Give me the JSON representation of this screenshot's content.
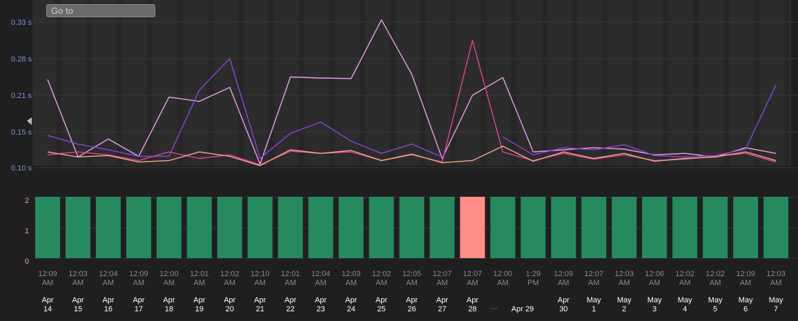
{
  "goto": {
    "placeholder": "Go to"
  },
  "colors": {
    "background": "#1f1f1f",
    "column_light": "#2c2c2c",
    "column_dark": "#262626",
    "pass_bar": "#268a5e",
    "fail_bar": "#ff8e86",
    "latency_tick": "#7f90dc",
    "count_tick": "#ff9a84",
    "time_label": "#8a8a8a",
    "date_label": "#ffffff"
  },
  "chart_data": [
    {
      "type": "line",
      "y_ticks": [
        "0.33 s",
        "0.28 s",
        "0.21 s",
        "0.15 s",
        "0.10 s"
      ],
      "y_tick_values": [
        0.33,
        0.28,
        0.21,
        0.15,
        0.1
      ],
      "grid": true,
      "series": [
        {
          "color": "#f0a0ee",
          "values": [
            0.24,
            0.115,
            0.14,
            0.116,
            0.207,
            0.2,
            0.225,
            0.105,
            0.245,
            0.243,
            0.242,
            0.333,
            0.25,
            0.113,
            0.21,
            0.244,
            0.122,
            0.125,
            0.128,
            0.126,
            0.118,
            0.12,
            0.115,
            0.128,
            0.12
          ]
        },
        {
          "color": "#8a44d8",
          "values": [
            0.145,
            0.133,
            0.125,
            0.116,
            0.116,
            0.22,
            0.28,
            0.113,
            0.148,
            0.166,
            0.137,
            0.12,
            0.133,
            0.115,
            null,
            0.143,
            0.118,
            0.128,
            0.125,
            0.132,
            0.117,
            0.115,
            0.117,
            0.126,
            0.23
          ]
        },
        {
          "color": "#e0459a",
          "values": [
            0.118,
            0.122,
            0.118,
            0.11,
            0.122,
            0.113,
            0.118,
            0.104,
            0.123,
            0.12,
            0.122,
            0.11,
            0.118,
            0.108,
            0.305,
            0.122,
            0.11,
            0.12,
            0.112,
            0.118,
            0.11,
            0.112,
            0.116,
            0.12,
            0.108
          ]
        },
        {
          "color": "#f6a88e",
          "values": [
            0.122,
            0.115,
            0.117,
            0.108,
            0.11,
            0.122,
            0.116,
            0.103,
            0.125,
            0.12,
            0.124,
            0.11,
            0.119,
            0.107,
            0.11,
            0.13,
            0.109,
            0.122,
            0.113,
            0.12,
            0.109,
            0.113,
            0.115,
            0.122,
            0.11
          ]
        }
      ]
    },
    {
      "type": "bar",
      "y_ticks": [
        "2",
        "1",
        "0"
      ],
      "y_tick_values": [
        2,
        1,
        0
      ],
      "ylim": [
        0,
        2
      ],
      "values": [
        2,
        2,
        2,
        2,
        2,
        2,
        2,
        2,
        2,
        2,
        2,
        2,
        2,
        2,
        2,
        2,
        2,
        2,
        2,
        2,
        2,
        2,
        2,
        2,
        2
      ],
      "status": [
        "pass",
        "pass",
        "pass",
        "pass",
        "pass",
        "pass",
        "pass",
        "pass",
        "pass",
        "pass",
        "pass",
        "pass",
        "pass",
        "pass",
        "fail",
        "pass",
        "pass",
        "pass",
        "pass",
        "pass",
        "pass",
        "pass",
        "pass",
        "pass",
        "pass"
      ]
    }
  ],
  "x_labels": {
    "times": [
      [
        "12:09",
        "AM"
      ],
      [
        "12:03",
        "AM"
      ],
      [
        "12:04",
        "AM"
      ],
      [
        "12:09",
        "AM"
      ],
      [
        "12:00",
        "AM"
      ],
      [
        "12:01",
        "AM"
      ],
      [
        "12:02",
        "AM"
      ],
      [
        "12:10",
        "AM"
      ],
      [
        "12:01",
        "AM"
      ],
      [
        "12:04",
        "AM"
      ],
      [
        "12:03",
        "AM"
      ],
      [
        "12:02",
        "AM"
      ],
      [
        "12:05",
        "AM"
      ],
      [
        "12:07",
        "AM"
      ],
      [
        "12:07",
        "AM"
      ],
      [
        "12:00",
        "AM"
      ],
      [
        "1:29",
        "PM"
      ],
      [
        "12:09",
        "AM"
      ],
      [
        "12:07",
        "AM"
      ],
      [
        "12:03",
        "AM"
      ],
      [
        "12:06",
        "AM"
      ],
      [
        "12:02",
        "AM"
      ],
      [
        "12:02",
        "AM"
      ],
      [
        "12:09",
        "AM"
      ],
      [
        "12:03",
        "AM"
      ]
    ],
    "dates": [
      [
        "Apr",
        "14"
      ],
      [
        "Apr",
        "15"
      ],
      [
        "Apr",
        "16"
      ],
      [
        "Apr",
        "17"
      ],
      [
        "Apr",
        "18"
      ],
      [
        "Apr",
        "19"
      ],
      [
        "Apr",
        "20"
      ],
      [
        "Apr",
        "21"
      ],
      [
        "Apr",
        "22"
      ],
      [
        "Apr",
        "23"
      ],
      [
        "Apr",
        "24"
      ],
      [
        "Apr",
        "25"
      ],
      [
        "Apr",
        "26"
      ],
      [
        "Apr",
        "27"
      ],
      [
        "Apr",
        "28"
      ],
      [
        "Apr 29"
      ],
      [],
      [
        "Apr",
        "30"
      ],
      [
        "May",
        "1"
      ],
      [
        "May",
        "2"
      ],
      [
        "May",
        "3"
      ],
      [
        "May",
        "4"
      ],
      [
        "May",
        "5"
      ],
      [
        "May",
        "6"
      ],
      [
        "May",
        "7"
      ]
    ]
  }
}
